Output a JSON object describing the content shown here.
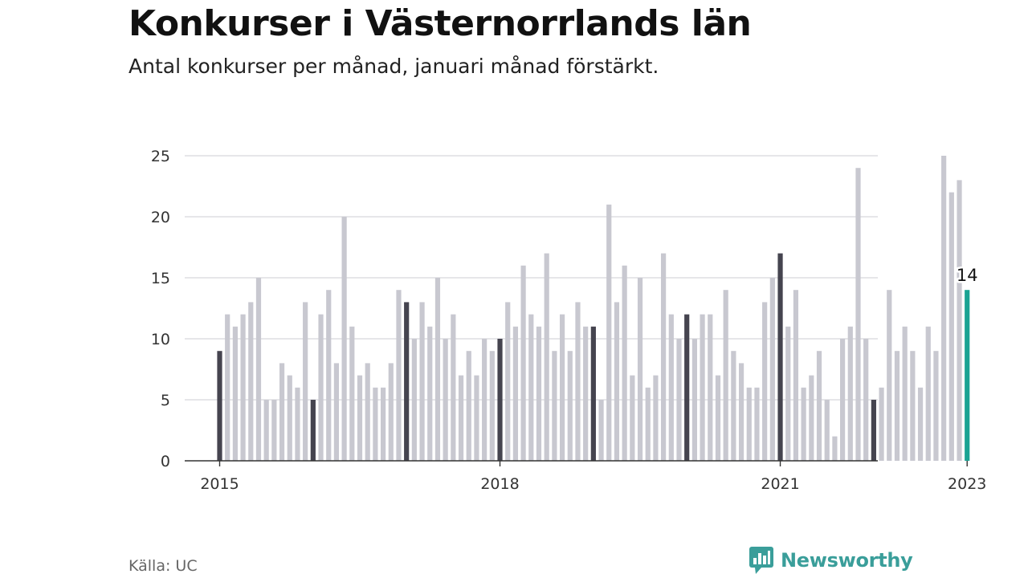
{
  "title": "Konkurser i Västernorrlands län",
  "subtitle": "Antal konkurser per månad, januari månad förstärkt.",
  "source": "Källa: UC",
  "brand": {
    "name": "Newsworthy",
    "icon": "newsworthy-chart-logo-icon",
    "color": "#3a9e9a"
  },
  "colors": {
    "regular_month": "#c8c8d0",
    "january": "#45444f",
    "latest": "#1aa393",
    "grid": "#d8d8dc",
    "axis": "#333333"
  },
  "chart_data": {
    "type": "bar",
    "title": "Konkurser i Västernorrlands län",
    "subtitle": "Antal konkurser per månad, januari månad förstärkt.",
    "xlabel": "",
    "ylabel": "",
    "ylim": [
      0,
      25
    ],
    "yticks": [
      0,
      5,
      10,
      15,
      20,
      25
    ],
    "xtick_labels": [
      {
        "label": "2015",
        "month": "2015-01"
      },
      {
        "label": "2018",
        "month": "2018-01"
      },
      {
        "label": "2021",
        "month": "2021-01"
      },
      {
        "label": "2023",
        "month": "2023-01"
      }
    ],
    "grid": true,
    "legend": "none",
    "highlight": "January bars dark; latest month (2023-01) teal",
    "start_month": "2015-01",
    "categories": [
      "2015-01",
      "2015-02",
      "2015-03",
      "2015-04",
      "2015-05",
      "2015-06",
      "2015-07",
      "2015-08",
      "2015-09",
      "2015-10",
      "2015-11",
      "2015-12",
      "2016-01",
      "2016-02",
      "2016-03",
      "2016-04",
      "2016-05",
      "2016-06",
      "2016-07",
      "2016-08",
      "2016-09",
      "2016-10",
      "2016-11",
      "2016-12",
      "2017-01",
      "2017-02",
      "2017-03",
      "2017-04",
      "2017-05",
      "2017-06",
      "2017-07",
      "2017-08",
      "2017-09",
      "2017-10",
      "2017-11",
      "2017-12",
      "2018-01",
      "2018-02",
      "2018-03",
      "2018-04",
      "2018-05",
      "2018-06",
      "2018-07",
      "2018-08",
      "2018-09",
      "2018-10",
      "2018-11",
      "2018-12",
      "2019-01",
      "2019-02",
      "2019-03",
      "2019-04",
      "2019-05",
      "2019-06",
      "2019-07",
      "2019-08",
      "2019-09",
      "2019-10",
      "2019-11",
      "2019-12",
      "2020-01",
      "2020-02",
      "2020-03",
      "2020-04",
      "2020-05",
      "2020-06",
      "2020-07",
      "2020-08",
      "2020-09",
      "2020-10",
      "2020-11",
      "2020-12",
      "2021-01",
      "2021-02",
      "2021-03",
      "2021-04",
      "2021-05",
      "2021-06",
      "2021-07",
      "2021-08",
      "2021-09",
      "2021-10",
      "2021-11",
      "2021-12",
      "2022-01",
      "2022-02",
      "2022-03",
      "2022-04",
      "2022-05",
      "2022-06",
      "2022-07",
      "2022-08",
      "2022-09",
      "2022-10",
      "2022-11",
      "2022-12",
      "2023-01"
    ],
    "values": [
      9,
      12,
      11,
      12,
      13,
      15,
      5,
      5,
      8,
      7,
      6,
      13,
      5,
      12,
      14,
      8,
      20,
      11,
      7,
      8,
      6,
      6,
      8,
      14,
      13,
      10,
      13,
      11,
      15,
      10,
      12,
      7,
      9,
      7,
      10,
      9,
      10,
      13,
      11,
      16,
      12,
      11,
      17,
      9,
      12,
      9,
      13,
      11,
      11,
      5,
      21,
      13,
      16,
      7,
      15,
      6,
      7,
      17,
      12,
      10,
      12,
      10,
      12,
      12,
      7,
      14,
      9,
      8,
      6,
      6,
      13,
      15,
      17,
      11,
      14,
      6,
      7,
      9,
      5,
      2,
      10,
      11,
      24,
      10,
      5,
      6,
      14,
      9,
      11,
      9,
      6,
      11,
      9,
      25,
      22,
      23,
      14
    ],
    "annotations": [
      {
        "month": "2023-01",
        "text": "14"
      }
    ]
  }
}
